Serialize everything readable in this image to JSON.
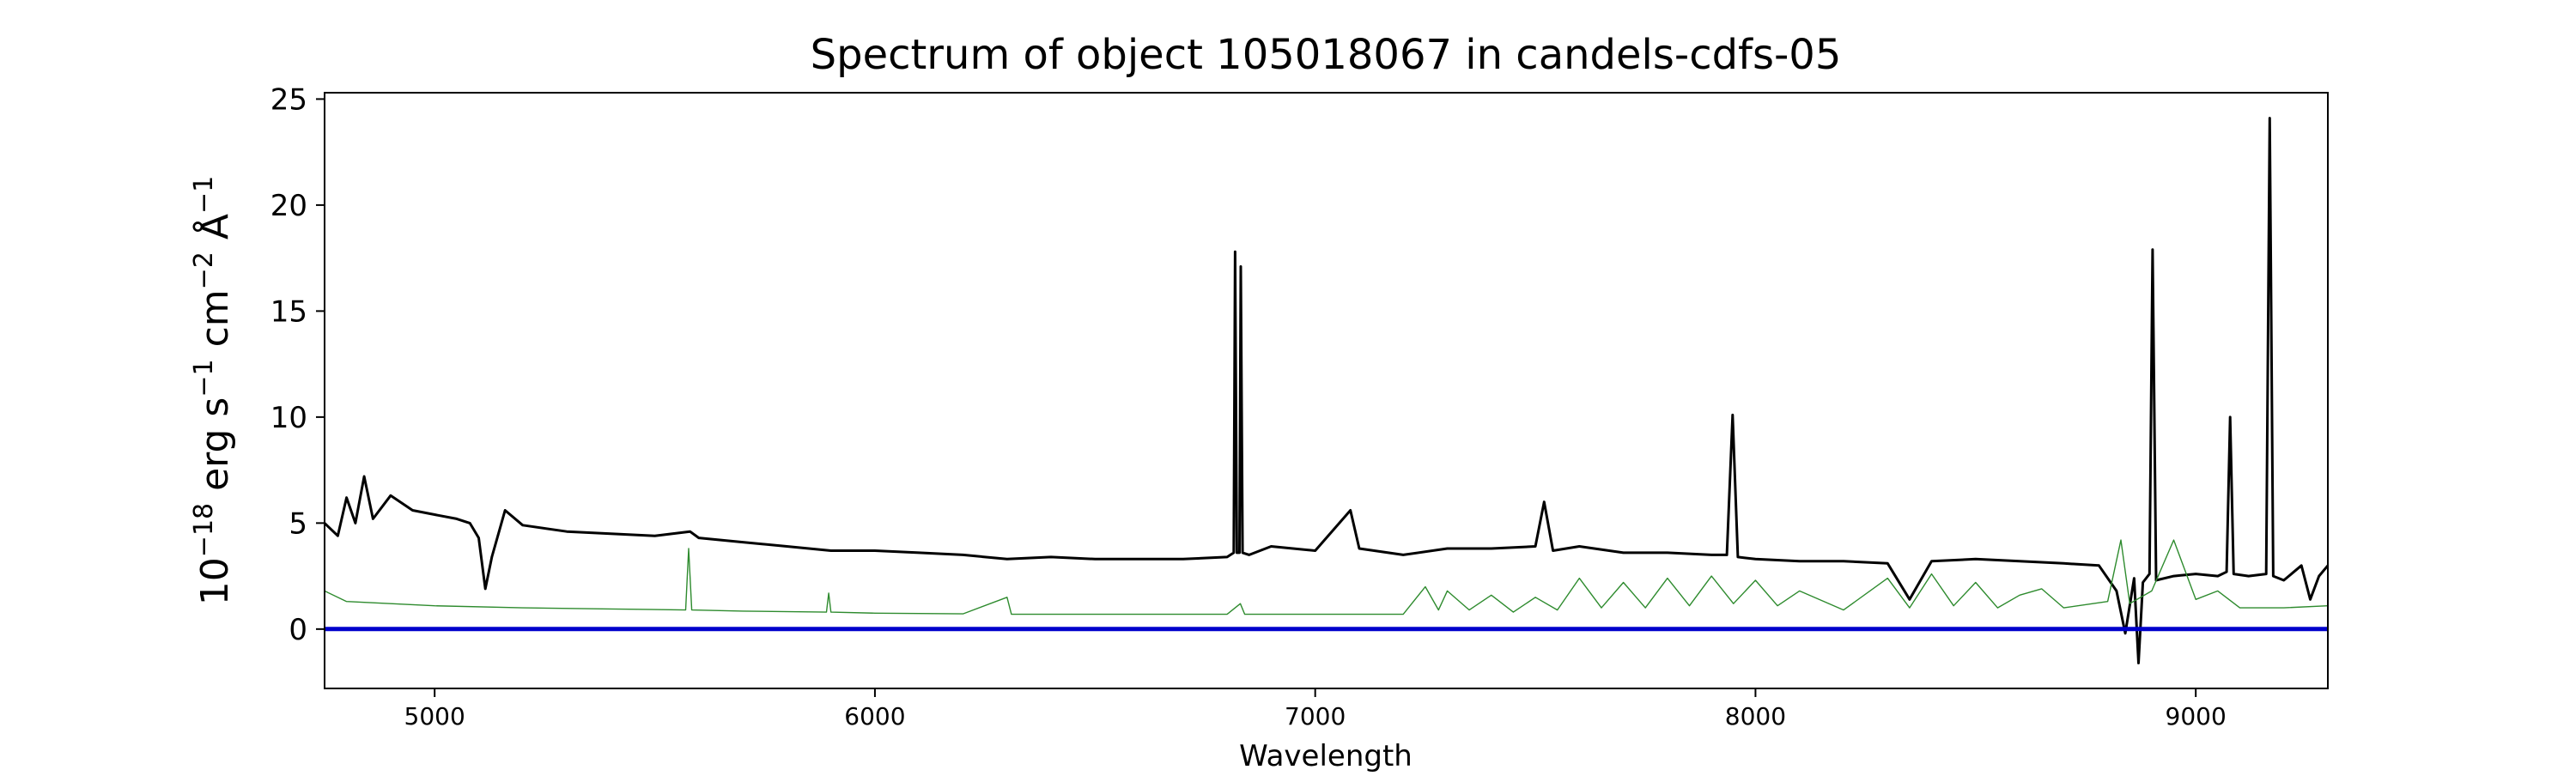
{
  "chart_data": {
    "type": "line",
    "title": "Spectrum of object 105018067 in candels-cdfs-05",
    "xlabel": "Wavelength",
    "ylabel": {
      "prefix": "10",
      "exp": "−18",
      "unit_1": " erg s",
      "exp_1": "−1",
      "unit_2": " cm",
      "exp_2": "−2",
      "unit_3": " Å",
      "exp_3": "−1"
    },
    "xlim": [
      4750,
      9300
    ],
    "ylim": [
      -2.8,
      25.3
    ],
    "x_ticks": [
      {
        "value": 5000,
        "label": "5000"
      },
      {
        "value": 6000,
        "label": "6000"
      },
      {
        "value": 7000,
        "label": "7000"
      },
      {
        "value": 8000,
        "label": "8000"
      },
      {
        "value": 9000,
        "label": "9000"
      }
    ],
    "y_ticks": [
      {
        "value": 0,
        "label": "0"
      },
      {
        "value": 5,
        "label": "5"
      },
      {
        "value": 10,
        "label": "10"
      },
      {
        "value": 15,
        "label": "15"
      },
      {
        "value": 20,
        "label": "20"
      },
      {
        "value": 25,
        "label": "25"
      }
    ],
    "grid": false,
    "colors": {
      "flux": "#000000",
      "error": "#2e8b2e",
      "zero": "#0000cc"
    },
    "series": [
      {
        "key": "flux",
        "points": [
          [
            4750,
            5.0
          ],
          [
            4780,
            4.4
          ],
          [
            4800,
            6.2
          ],
          [
            4820,
            5.0
          ],
          [
            4840,
            7.2
          ],
          [
            4860,
            5.2
          ],
          [
            4900,
            6.3
          ],
          [
            4950,
            5.6
          ],
          [
            5000,
            5.4
          ],
          [
            5050,
            5.2
          ],
          [
            5080,
            5.0
          ],
          [
            5100,
            4.3
          ],
          [
            5115,
            1.9
          ],
          [
            5130,
            3.4
          ],
          [
            5160,
            5.6
          ],
          [
            5200,
            4.9
          ],
          [
            5300,
            4.6
          ],
          [
            5400,
            4.5
          ],
          [
            5500,
            4.4
          ],
          [
            5580,
            4.6
          ],
          [
            5600,
            4.3
          ],
          [
            5700,
            4.1
          ],
          [
            5800,
            3.9
          ],
          [
            5900,
            3.7
          ],
          [
            6000,
            3.7
          ],
          [
            6100,
            3.6
          ],
          [
            6200,
            3.5
          ],
          [
            6300,
            3.3
          ],
          [
            6400,
            3.4
          ],
          [
            6500,
            3.3
          ],
          [
            6600,
            3.3
          ],
          [
            6700,
            3.3
          ],
          [
            6800,
            3.4
          ],
          [
            6815,
            3.6
          ],
          [
            6818,
            17.8
          ],
          [
            6822,
            3.6
          ],
          [
            6828,
            3.6
          ],
          [
            6831,
            17.1
          ],
          [
            6835,
            3.6
          ],
          [
            6850,
            3.5
          ],
          [
            6900,
            3.9
          ],
          [
            7000,
            3.7
          ],
          [
            7080,
            5.6
          ],
          [
            7100,
            3.8
          ],
          [
            7200,
            3.5
          ],
          [
            7300,
            3.8
          ],
          [
            7400,
            3.8
          ],
          [
            7500,
            3.9
          ],
          [
            7520,
            6.0
          ],
          [
            7540,
            3.7
          ],
          [
            7600,
            3.9
          ],
          [
            7700,
            3.6
          ],
          [
            7800,
            3.6
          ],
          [
            7900,
            3.5
          ],
          [
            7935,
            3.5
          ],
          [
            7948,
            10.1
          ],
          [
            7960,
            3.4
          ],
          [
            8000,
            3.3
          ],
          [
            8100,
            3.2
          ],
          [
            8200,
            3.2
          ],
          [
            8300,
            3.1
          ],
          [
            8350,
            1.4
          ],
          [
            8400,
            3.2
          ],
          [
            8500,
            3.3
          ],
          [
            8600,
            3.2
          ],
          [
            8700,
            3.1
          ],
          [
            8780,
            3.0
          ],
          [
            8820,
            1.8
          ],
          [
            8840,
            -0.2
          ],
          [
            8860,
            2.4
          ],
          [
            8870,
            -1.6
          ],
          [
            8880,
            2.2
          ],
          [
            8895,
            2.6
          ],
          [
            8902,
            17.9
          ],
          [
            8910,
            2.3
          ],
          [
            8950,
            2.5
          ],
          [
            9000,
            2.6
          ],
          [
            9050,
            2.5
          ],
          [
            9070,
            2.7
          ],
          [
            9078,
            10.0
          ],
          [
            9086,
            2.6
          ],
          [
            9120,
            2.5
          ],
          [
            9160,
            2.6
          ],
          [
            9168,
            24.1
          ],
          [
            9176,
            2.5
          ],
          [
            9200,
            2.3
          ],
          [
            9240,
            3.0
          ],
          [
            9260,
            1.4
          ],
          [
            9280,
            2.5
          ],
          [
            9300,
            3.0
          ]
        ]
      },
      {
        "key": "error",
        "points": [
          [
            4750,
            1.8
          ],
          [
            4800,
            1.3
          ],
          [
            4900,
            1.2
          ],
          [
            5000,
            1.1
          ],
          [
            5200,
            1.0
          ],
          [
            5400,
            0.95
          ],
          [
            5570,
            0.9
          ],
          [
            5577,
            3.8
          ],
          [
            5584,
            0.9
          ],
          [
            5700,
            0.85
          ],
          [
            5890,
            0.8
          ],
          [
            5895,
            1.7
          ],
          [
            5900,
            0.8
          ],
          [
            6000,
            0.75
          ],
          [
            6200,
            0.72
          ],
          [
            6300,
            1.5
          ],
          [
            6310,
            0.7
          ],
          [
            6500,
            0.7
          ],
          [
            6800,
            0.7
          ],
          [
            6830,
            1.2
          ],
          [
            6840,
            0.7
          ],
          [
            7000,
            0.7
          ],
          [
            7200,
            0.7
          ],
          [
            7250,
            2.0
          ],
          [
            7280,
            0.9
          ],
          [
            7300,
            1.8
          ],
          [
            7350,
            0.9
          ],
          [
            7400,
            1.6
          ],
          [
            7450,
            0.8
          ],
          [
            7500,
            1.5
          ],
          [
            7550,
            0.9
          ],
          [
            7600,
            2.4
          ],
          [
            7650,
            1.0
          ],
          [
            7700,
            2.2
          ],
          [
            7750,
            1.0
          ],
          [
            7800,
            2.4
          ],
          [
            7850,
            1.1
          ],
          [
            7900,
            2.5
          ],
          [
            7950,
            1.2
          ],
          [
            8000,
            2.3
          ],
          [
            8050,
            1.1
          ],
          [
            8100,
            1.8
          ],
          [
            8200,
            0.9
          ],
          [
            8300,
            2.4
          ],
          [
            8350,
            1.0
          ],
          [
            8400,
            2.6
          ],
          [
            8450,
            1.1
          ],
          [
            8500,
            2.2
          ],
          [
            8550,
            1.0
          ],
          [
            8600,
            1.6
          ],
          [
            8650,
            1.9
          ],
          [
            8700,
            1.0
          ],
          [
            8800,
            1.3
          ],
          [
            8830,
            4.2
          ],
          [
            8850,
            1.2
          ],
          [
            8900,
            1.8
          ],
          [
            8950,
            4.2
          ],
          [
            9000,
            1.4
          ],
          [
            9050,
            1.8
          ],
          [
            9100,
            1.0
          ],
          [
            9200,
            1.0
          ],
          [
            9300,
            1.1
          ]
        ]
      },
      {
        "key": "zero",
        "points": [
          [
            4750,
            0
          ],
          [
            9300,
            0
          ]
        ]
      }
    ]
  }
}
